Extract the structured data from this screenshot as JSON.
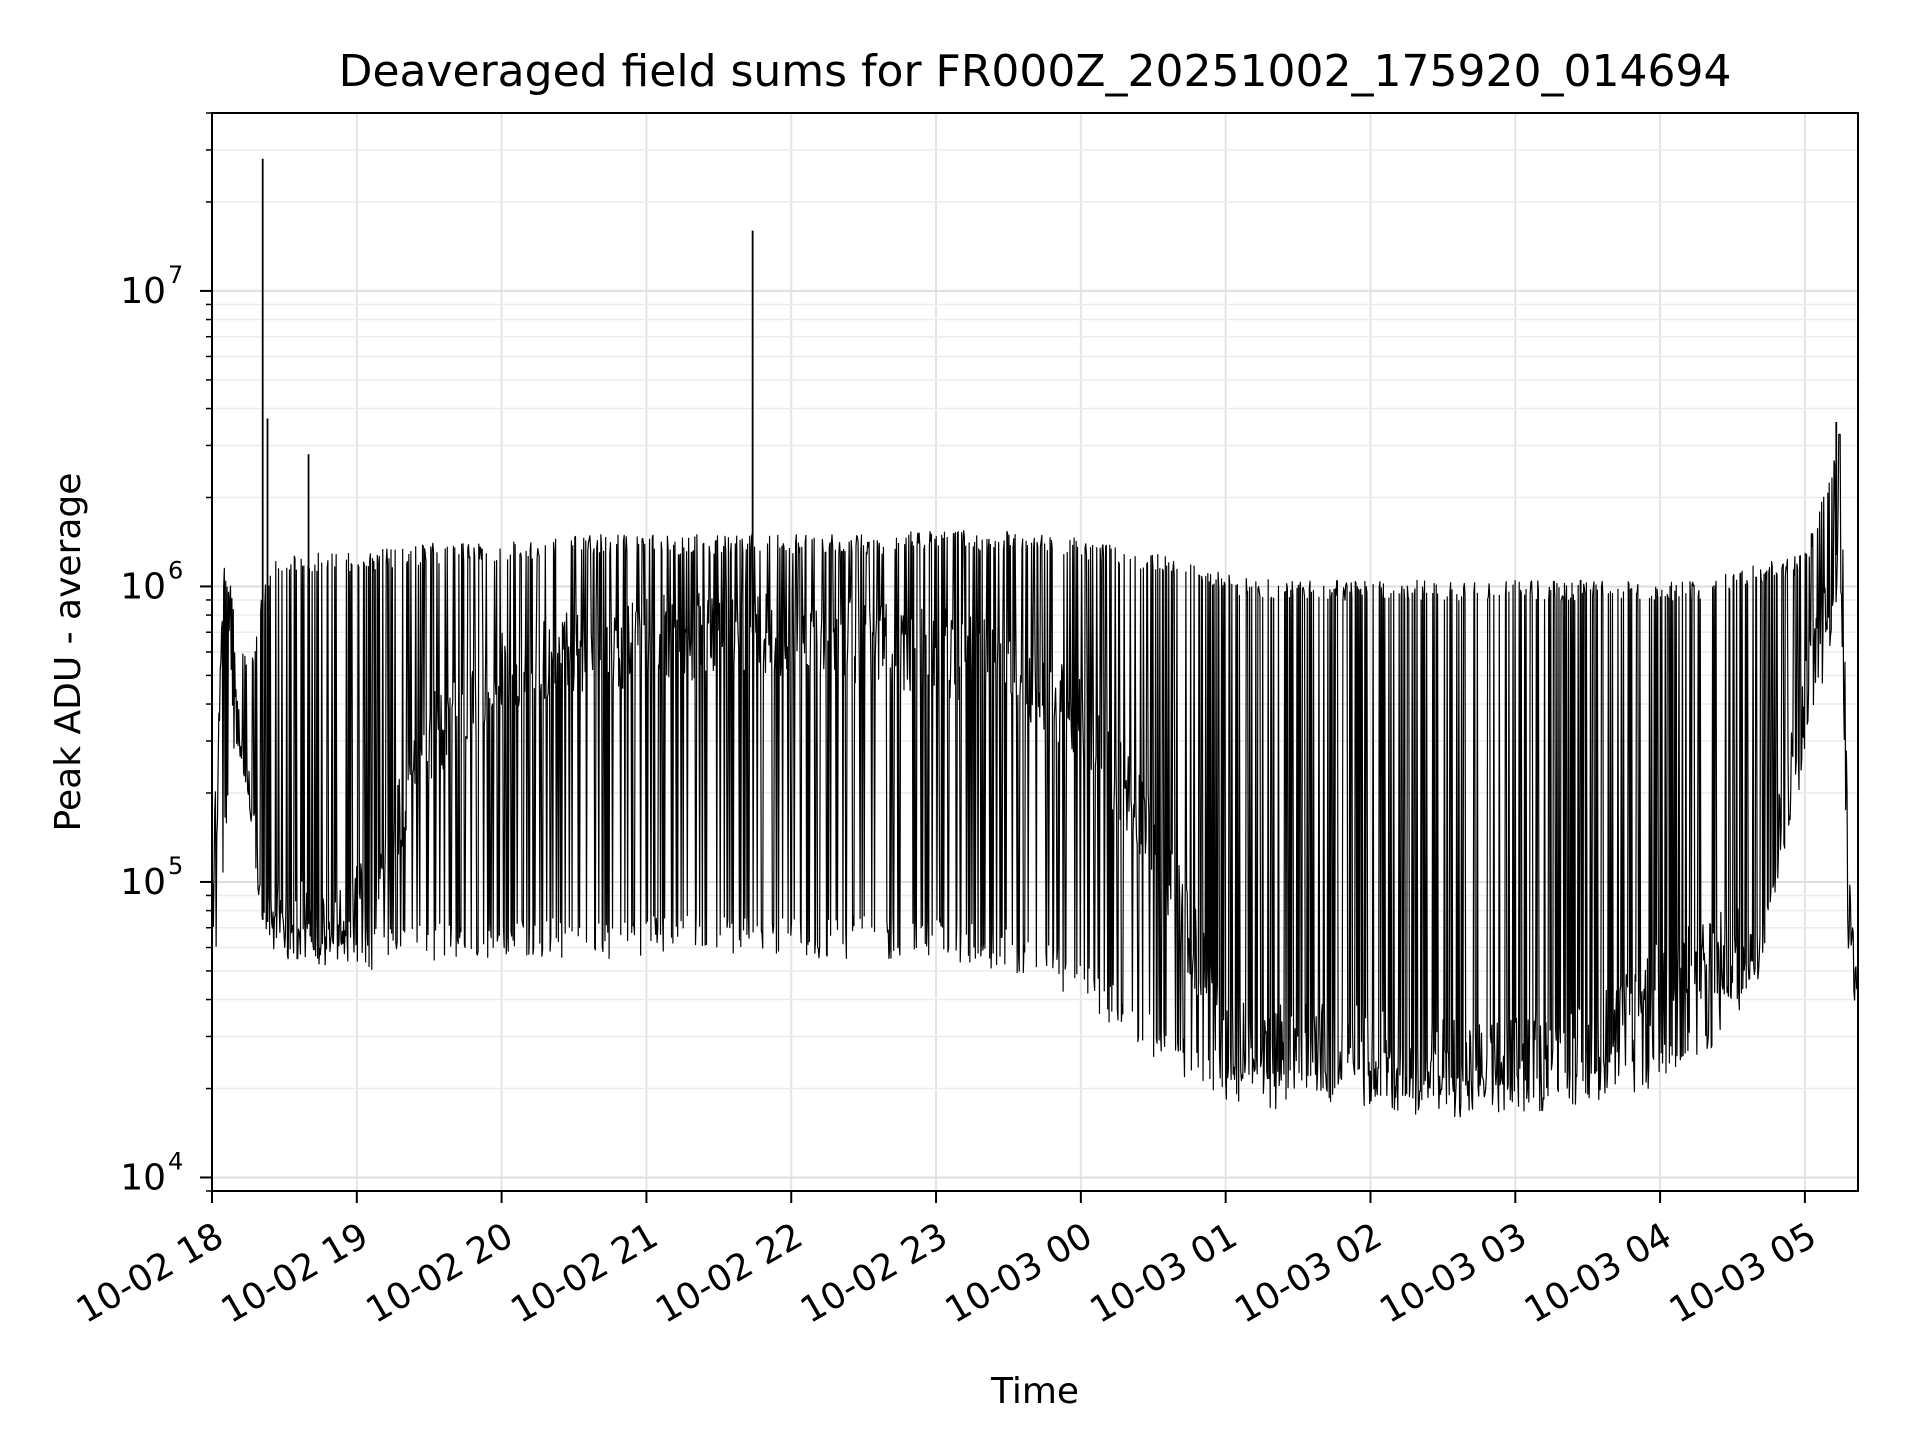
{
  "chart_data": {
    "type": "line",
    "title": "Deaveraged field sums for FR000Z_20251002_175920_014694",
    "xlabel": "Time",
    "ylabel": "Peak ADU - average",
    "y_scale": "log",
    "x_range": [
      "2025-10-02 18:00",
      "2025-10-03 05:22"
    ],
    "ylim": [
      9000,
      40000000
    ],
    "grid": true,
    "line_color": "#000000",
    "x_ticks": [
      "10-02 18",
      "10-02 19",
      "10-02 20",
      "10-02 21",
      "10-02 22",
      "10-02 23",
      "10-03 00",
      "10-03 01",
      "10-03 02",
      "10-03 03",
      "10-03 04",
      "10-03 05"
    ],
    "y_ticks": [
      {
        "base": "10",
        "exp": "4",
        "value": 10000
      },
      {
        "base": "10",
        "exp": "5",
        "value": 100000
      },
      {
        "base": "10",
        "exp": "6",
        "value": 1000000
      },
      {
        "base": "10",
        "exp": "7",
        "value": 10000000
      }
    ],
    "series": [
      {
        "envelope": {
          "time": [
            "2025-10-02 18:00",
            "2025-10-02 18:05",
            "2025-10-02 18:10",
            "2025-10-02 18:15",
            "2025-10-02 18:20",
            "2025-10-02 18:25",
            "2025-10-02 18:30",
            "2025-10-02 18:40",
            "2025-10-02 18:50",
            "2025-10-02 19:00",
            "2025-10-02 19:30",
            "2025-10-02 20:00",
            "2025-10-02 20:30",
            "2025-10-02 21:00",
            "2025-10-02 21:30",
            "2025-10-02 22:00",
            "2025-10-02 22:30",
            "2025-10-02 23:00",
            "2025-10-02 23:30",
            "2025-10-03 00:00",
            "2025-10-03 00:30",
            "2025-10-03 01:00",
            "2025-10-03 01:30",
            "2025-10-03 02:00",
            "2025-10-03 02:30",
            "2025-10-03 03:00",
            "2025-10-03 03:30",
            "2025-10-03 04:00",
            "2025-10-03 04:20",
            "2025-10-03 04:40",
            "2025-10-03 05:00",
            "2025-10-03 05:10",
            "2025-10-03 05:15",
            "2025-10-03 05:18",
            "2025-10-03 05:22"
          ],
          "upper": [
            100000,
            1200000,
            900000,
            500000,
            900000,
            1200000,
            1300000,
            1300000,
            1300000,
            1300000,
            1400000,
            1400000,
            1500000,
            1500000,
            1500000,
            1500000,
            1500000,
            1550000,
            1550000,
            1450000,
            1300000,
            1100000,
            1050000,
            1050000,
            1050000,
            1050000,
            1050000,
            1050000,
            1050000,
            1200000,
            1300000,
            2500000,
            3500000,
            120000,
            45000
          ],
          "lower": [
            40000,
            110000,
            300000,
            200000,
            80000,
            60000,
            55000,
            55000,
            50000,
            50000,
            52000,
            55000,
            55000,
            55000,
            55000,
            55000,
            55000,
            55000,
            50000,
            40000,
            25000,
            17000,
            17000,
            17000,
            16000,
            16000,
            18000,
            20000,
            25000,
            45000,
            250000,
            600000,
            900000,
            60000,
            30000
          ],
          "base": [
            55000,
            1000000,
            400000,
            120000,
            75000,
            72000,
            70000,
            72000,
            75000,
            80000,
            300000,
            500000,
            600000,
            650000,
            700000,
            700000,
            650000,
            600000,
            550000,
            350000,
            150000,
            30000,
            28000,
            27000,
            25000,
            25000,
            28000,
            45000,
            55000,
            60000,
            400000,
            1000000,
            1500000,
            70000,
            35000
          ]
        },
        "spikes": [
          {
            "time": "2025-10-02 18:21",
            "value": 28000000
          },
          {
            "time": "2025-10-02 18:23",
            "value": 3700000
          },
          {
            "time": "2025-10-02 18:40",
            "value": 2800000
          },
          {
            "time": "2025-10-02 21:44",
            "value": 16000000
          },
          {
            "time": "2025-10-03 05:13",
            "value": 3600000
          }
        ]
      }
    ]
  }
}
